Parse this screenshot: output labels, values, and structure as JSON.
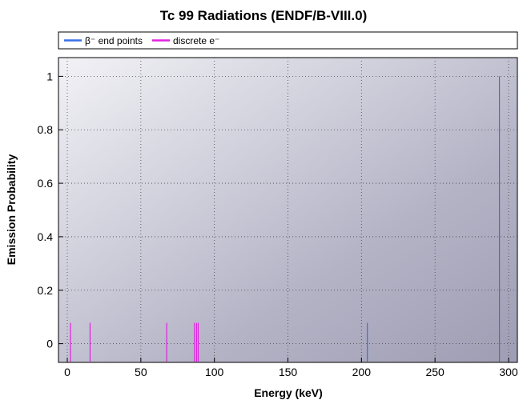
{
  "chart_data": {
    "type": "line",
    "title": "Tc 99 Radiations (ENDF/B-VIII.0)",
    "xlabel": "Energy (keV)",
    "ylabel": "Emission Probability",
    "xlim": [
      -6,
      306
    ],
    "ylim": [
      -0.07,
      1.07
    ],
    "xticks": [
      0,
      50,
      100,
      150,
      200,
      250,
      300
    ],
    "yticks": [
      0,
      0.2,
      0.4,
      0.6,
      0.8,
      1
    ],
    "ytick_labels": [
      "0",
      "0.2",
      "0.4",
      "0.6",
      "0.8",
      "1"
    ],
    "grid": true,
    "legend_position": "top",
    "series": [
      {
        "name": "β⁻ end points",
        "color": "#3a6fe8",
        "style": "vertical-lines",
        "points": [
          {
            "x": 204.0,
            "y": 1.6e-05
          },
          {
            "x": 293.8,
            "y": 0.99998
          }
        ]
      },
      {
        "name": "discrete e⁻",
        "color": "#e020e0",
        "style": "vertical-lines",
        "points": [
          {
            "x": 2.2,
            "y": 1e-05
          },
          {
            "x": 15.5,
            "y": 1e-05
          },
          {
            "x": 67.6,
            "y": 1e-05
          },
          {
            "x": 86.5,
            "y": 1e-05
          },
          {
            "x": 87.9,
            "y": 1e-05
          },
          {
            "x": 89.0,
            "y": 1e-05
          }
        ]
      }
    ]
  }
}
